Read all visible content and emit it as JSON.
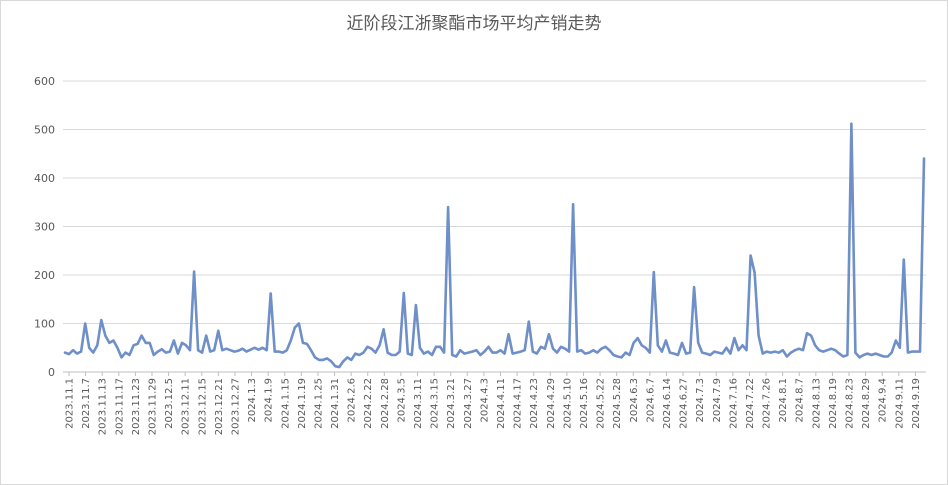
{
  "chart_data": {
    "type": "line",
    "title": "近阶段江浙聚酯市场平均产销走势",
    "xlabel": "",
    "ylabel": "",
    "ylim": [
      0,
      600
    ],
    "yticks": [
      0,
      100,
      200,
      300,
      400,
      500,
      600
    ],
    "grid": true,
    "legend": "none",
    "line_color": "#6f8fc9",
    "x_tick_labels": [
      "2023.11.1",
      "2023.11.7",
      "2023.11.13",
      "2023.11.17",
      "2023.11.23",
      "2023.11.29",
      "2023.12.5",
      "2023.12.11",
      "2023.12.15",
      "2023.12.21",
      "2023.12.27",
      "2024.1.3",
      "2024.1.9",
      "2024.1.15",
      "2024.1.19",
      "2024.1.25",
      "2024.1.31",
      "2024.2.6",
      "2024.2.22",
      "2024.2.28",
      "2024.3.5",
      "2024.3.11",
      "2024.3.15",
      "2024.3.21",
      "2024.3.27",
      "2024.4.3",
      "2024.4.11",
      "2024.4.17",
      "2024.4.23",
      "2024.4.29",
      "2024.5.10",
      "2024.5.16",
      "2024.5.22",
      "2024.5.28",
      "2024.6.3",
      "2024.6.7",
      "2024.6.14",
      "2024.6.27",
      "2024.7.3",
      "2024.7.9",
      "2024.7.16",
      "2024.7.22",
      "2024.7.26",
      "2024.8.1",
      "2024.8.7",
      "2024.8.13",
      "2024.8.19",
      "2024.8.23",
      "2024.8.29",
      "2024.9.4",
      "2024.9.11",
      "2024.9.19"
    ],
    "values": [
      40,
      37,
      45,
      38,
      42,
      100,
      50,
      40,
      55,
      107,
      75,
      60,
      65,
      50,
      30,
      40,
      35,
      55,
      58,
      75,
      60,
      60,
      35,
      42,
      47,
      40,
      42,
      65,
      38,
      60,
      55,
      45,
      207,
      45,
      40,
      75,
      42,
      45,
      85,
      45,
      48,
      45,
      42,
      44,
      48,
      42,
      46,
      50,
      46,
      50,
      45,
      162,
      42,
      42,
      40,
      45,
      65,
      92,
      100,
      60,
      58,
      45,
      30,
      25,
      25,
      28,
      22,
      12,
      10,
      22,
      30,
      25,
      38,
      35,
      40,
      52,
      48,
      40,
      55,
      88,
      40,
      35,
      35,
      42,
      163,
      38,
      35,
      138,
      50,
      38,
      42,
      35,
      52,
      52,
      40,
      340,
      35,
      32,
      45,
      38,
      40,
      42,
      45,
      35,
      42,
      52,
      40,
      40,
      45,
      38,
      78,
      38,
      40,
      42,
      45,
      104,
      42,
      38,
      52,
      48,
      78,
      48,
      40,
      52,
      48,
      42,
      346,
      42,
      45,
      38,
      40,
      45,
      40,
      48,
      52,
      45,
      35,
      32,
      30,
      40,
      35,
      60,
      70,
      55,
      50,
      40,
      206,
      55,
      42,
      65,
      40,
      38,
      35,
      60,
      38,
      40,
      175,
      60,
      40,
      38,
      35,
      42,
      40,
      38,
      50,
      38,
      70,
      45,
      55,
      45,
      240,
      205,
      75,
      38,
      42,
      40,
      42,
      40,
      45,
      32,
      40,
      45,
      48,
      45,
      80,
      75,
      55,
      45,
      42,
      45,
      48,
      45,
      38,
      32,
      35,
      512,
      40,
      30,
      35,
      38,
      35,
      38,
      35,
      32,
      32,
      40,
      65,
      50,
      232,
      40,
      42,
      42,
      42,
      440
    ]
  }
}
